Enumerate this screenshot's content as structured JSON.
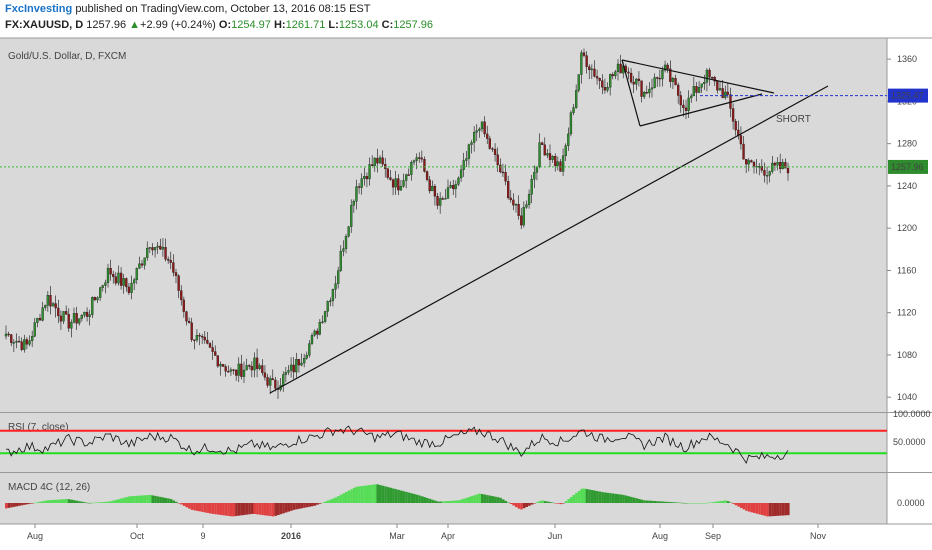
{
  "header": {
    "author": "FxcInvesting",
    "published": "published on TradingView.com, October 13, 2016 08:15 EST",
    "symbol": "FX:XAUUSD, D",
    "last": "1257.96",
    "change": "+2.99 (+0.24%)",
    "o_label": "O:",
    "o": "1254.97",
    "h_label": "H:",
    "h": "1261.71",
    "l_label": "L:",
    "l": "1253.04",
    "c_label": "C:",
    "c": "1257.96"
  },
  "colors": {
    "bg": "#d9d9d9",
    "up": "#2e8b2e",
    "down": "#8b1a1a",
    "rsi_upper": "#ff2020",
    "rsi_lower": "#22dd22",
    "macd_pos": "#55dd55",
    "macd_neg": "#e04040",
    "price_line": "#33bb33",
    "short_line": "#2233cc"
  },
  "chart_data": {
    "type": "candlestick",
    "title": "Gold/U.S. Dollar, D, FXCM",
    "y_ticks": [
      1040,
      1080,
      1120,
      1160,
      1200,
      1240,
      1280,
      1320,
      1360
    ],
    "y_range": [
      1026,
      1380
    ],
    "x_ticks": [
      "Aug",
      "Oct",
      "9",
      "2016",
      "Mar",
      "Apr",
      "Jun",
      "Aug",
      "Sep",
      "Nov"
    ],
    "price_path": [
      [
        "Jul",
        1100
      ],
      [
        "Aug",
        1088
      ],
      [
        "Aug",
        1135
      ],
      [
        "Aug",
        1110
      ],
      [
        "Sep",
        1120
      ],
      [
        "Sep",
        1160
      ],
      [
        "Oct",
        1142
      ],
      [
        "Oct",
        1188
      ],
      [
        "Oct",
        1168
      ],
      [
        "Nov",
        1100
      ],
      [
        "Nov",
        1082
      ],
      [
        "Dec",
        1062
      ],
      [
        "Dec",
        1072
      ],
      [
        "Dec",
        1050
      ],
      [
        "Jan",
        1068
      ],
      [
        "Jan",
        1098
      ],
      [
        "Feb",
        1150
      ],
      [
        "Feb",
        1240
      ],
      [
        "Feb",
        1265
      ],
      [
        "Mar",
        1240
      ],
      [
        "Mar",
        1270
      ],
      [
        "Apr",
        1220
      ],
      [
        "Apr",
        1245
      ],
      [
        "May",
        1300
      ],
      [
        "May",
        1255
      ],
      [
        "Jun",
        1205
      ],
      [
        "Jun",
        1280
      ],
      [
        "Jun",
        1255
      ],
      [
        "Jul",
        1365
      ],
      [
        "Jul",
        1335
      ],
      [
        "Jul",
        1355
      ],
      [
        "Aug",
        1328
      ],
      [
        "Aug",
        1350
      ],
      [
        "Sep",
        1315
      ],
      [
        "Sep",
        1345
      ],
      [
        "Sep",
        1325
      ],
      [
        "Oct",
        1260
      ],
      [
        "Oct",
        1255
      ],
      [
        "Oct",
        1258
      ]
    ],
    "current_price": 1257.96,
    "short_level": 1325.47,
    "annotation": "SHORT",
    "indicators": {
      "rsi": {
        "title": "RSI (7, close)",
        "ticks": [
          "100.0000",
          "50.0000"
        ],
        "upper": 70,
        "lower": 30,
        "values": [
          30,
          42,
          38,
          55,
          48,
          62,
          45,
          60,
          58,
          35,
          40,
          33,
          46,
          38,
          52,
          60,
          72,
          70,
          58,
          65,
          50,
          48,
          62,
          70,
          55,
          30,
          58,
          50,
          70,
          55,
          62,
          45,
          58,
          40,
          60,
          48,
          20,
          24,
          30
        ]
      },
      "macd": {
        "title": "MACD 4C (12, 26)",
        "ticks": [
          "0.0000"
        ],
        "values": [
          -4,
          -1,
          2,
          3,
          0,
          1,
          5,
          6,
          3,
          -5,
          -8,
          -10,
          -8,
          -10,
          -5,
          -2,
          4,
          12,
          14,
          10,
          6,
          1,
          2,
          7,
          4,
          -5,
          2,
          -1,
          11,
          8,
          6,
          2,
          1,
          0,
          0,
          2,
          -6,
          -10,
          -9
        ]
      }
    }
  }
}
